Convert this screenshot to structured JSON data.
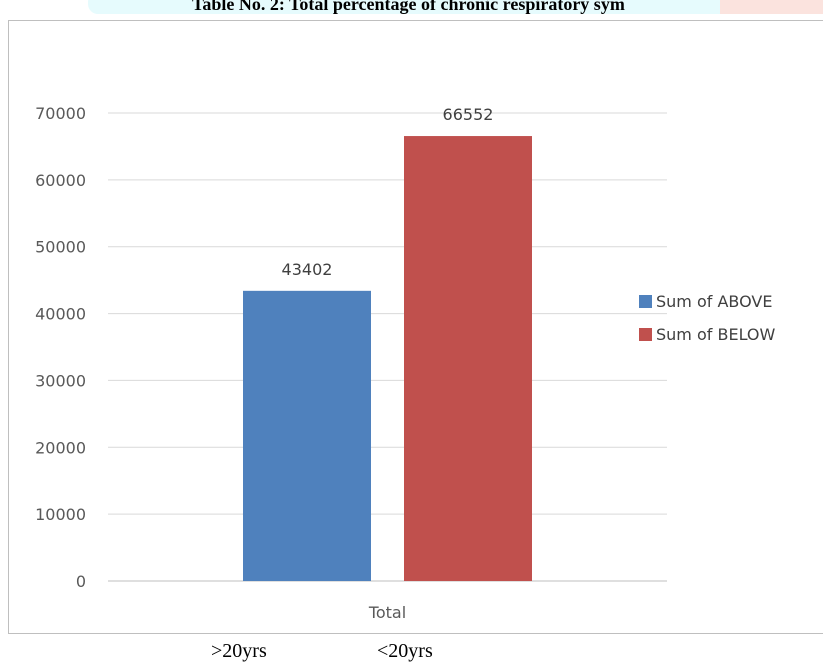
{
  "title": "Table No. 2: Total percentage of chronic respiratory sym",
  "colors": {
    "above": "#4f81bd",
    "below": "#c0504d",
    "grid": "#d9d9d9",
    "title_highlight_left": "#e6fbfd",
    "title_highlight_right": "#fbe3de"
  },
  "chart_data": {
    "type": "bar",
    "categories": [
      "Total"
    ],
    "series": [
      {
        "name": "Sum of ABOVE",
        "values": [
          43402
        ],
        "color": "#4f81bd"
      },
      {
        "name": "Sum of BELOW",
        "values": [
          66552
        ],
        "color": "#c0504d"
      }
    ],
    "ylim": [
      0,
      70000
    ],
    "yticks": [
      "0",
      "10000",
      "20000",
      "30000",
      "40000",
      "50000",
      "60000",
      "70000"
    ],
    "data_labels": [
      "43402",
      "66552"
    ],
    "grid": true,
    "legend": "right"
  },
  "bottom_labels": [
    ">20yrs",
    "<20yrs"
  ]
}
